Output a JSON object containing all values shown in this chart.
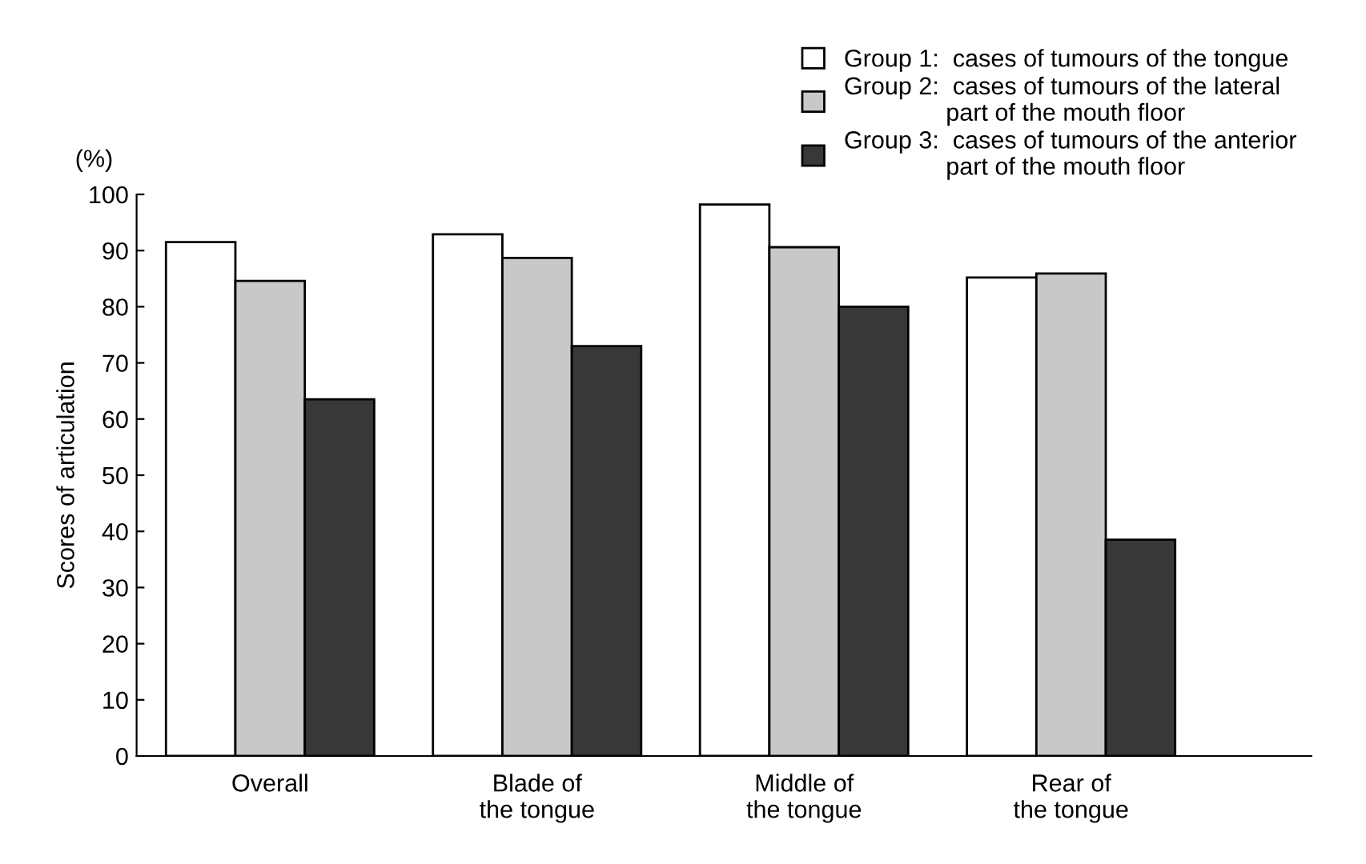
{
  "chart_data": {
    "type": "bar",
    "ylabel": "Scores of articulation",
    "annotations": [
      "(%)"
    ],
    "categories": [
      "Overall",
      "Blade of\nthe tongue",
      "Middle of\nthe tongue",
      "Rear of\nthe tongue"
    ],
    "series": [
      {
        "name": "Group 1:  cases of tumours of the tongue",
        "color": "#ffffff",
        "values": [
          91.5,
          92.9,
          98.2,
          85.2
        ]
      },
      {
        "name": "Group 2:  cases of tumours of the lateral\n               part of the mouth floor",
        "color": "#c8c8c8",
        "values": [
          84.6,
          88.7,
          90.6,
          85.9
        ]
      },
      {
        "name": "Group 3:  cases of tumours of the anterior\n               part of the mouth floor",
        "color": "#383838",
        "values": [
          63.5,
          73.0,
          80.0,
          38.5
        ]
      }
    ],
    "ylim": [
      0,
      100
    ],
    "yticks": [
      0,
      10,
      20,
      30,
      40,
      50,
      60,
      70,
      80,
      90,
      100
    ],
    "grid": false,
    "legend": "top right"
  }
}
